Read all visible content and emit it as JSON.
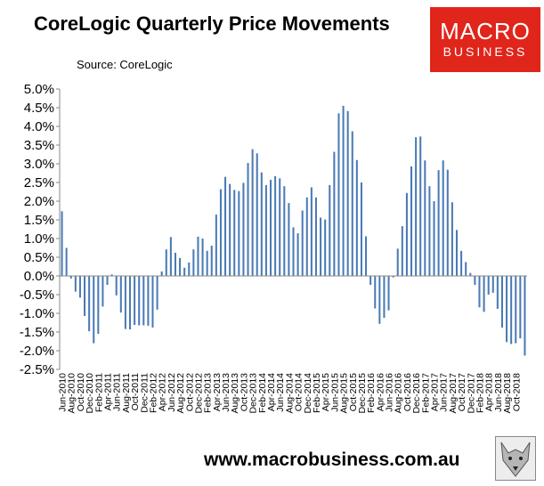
{
  "header": {
    "title": "CoreLogic Quarterly Price Movements",
    "source": "Source: CoreLogic"
  },
  "logo": {
    "line1": "MACRO",
    "line2": "BUSINESS",
    "color": "#e0251b"
  },
  "footer": {
    "url": "www.macrobusiness.com.au",
    "wolf_icon": "wolf-logo-icon"
  },
  "chart_data": {
    "type": "bar",
    "title": "CoreLogic Quarterly Price Movements",
    "bar_color": "#4a7ab5",
    "ylim": [
      -2.5,
      5.0
    ],
    "yticks": [
      "5.0%",
      "4.5%",
      "4.0%",
      "3.5%",
      "3.0%",
      "2.5%",
      "2.0%",
      "1.5%",
      "1.0%",
      "0.5%",
      "0.0%",
      "-0.5%",
      "-1.0%",
      "-1.5%",
      "-2.0%",
      "-2.5%"
    ],
    "ytick_values": [
      5.0,
      4.5,
      4.0,
      3.5,
      3.0,
      2.5,
      2.0,
      1.5,
      1.0,
      0.5,
      0.0,
      -0.5,
      -1.0,
      -1.5,
      -2.0,
      -2.5
    ],
    "xtick_labels": [
      "Jun-2010",
      "Aug-2010",
      "Oct-2010",
      "Dec-2010",
      "Feb-2011",
      "Apr-2011",
      "Jun-2011",
      "Aug-2011",
      "Oct-2011",
      "Dec-2011",
      "Feb-2012",
      "Apr-2012",
      "Jun-2012",
      "Aug-2012",
      "Oct-2012",
      "Dec-2012",
      "Feb-2013",
      "Apr-2013",
      "Jun-2013",
      "Aug-2013",
      "Oct-2013",
      "Dec-2013",
      "Feb-2014",
      "Apr-2014",
      "Jun-2014",
      "Aug-2014",
      "Oct-2014",
      "Dec-2014",
      "Feb-2015",
      "Apr-2015",
      "Jun-2015",
      "Aug-2015",
      "Oct-2015",
      "Dec-2015",
      "Feb-2016",
      "Apr-2016",
      "Jun-2016",
      "Aug-2016",
      "Oct-2016",
      "Dec-2016",
      "Feb-2017",
      "Apr-2017",
      "Jun-2017",
      "Aug-2017",
      "Oct-2017",
      "Dec-2017",
      "Feb-2018",
      "Apr-2018",
      "Jun-2018",
      "Aug-2018",
      "Oct-2018"
    ],
    "values": [
      1.73,
      0.75,
      -0.07,
      -0.42,
      -0.58,
      -1.07,
      -1.48,
      -1.8,
      -1.55,
      -0.82,
      -0.24,
      0.04,
      -0.52,
      -0.98,
      -1.42,
      -1.43,
      -1.31,
      -1.32,
      -1.32,
      -1.33,
      -1.38,
      -0.9,
      0.12,
      0.71,
      1.04,
      0.62,
      0.48,
      0.22,
      0.36,
      0.71,
      1.05,
      1.0,
      0.67,
      0.81,
      1.64,
      2.32,
      2.65,
      2.46,
      2.3,
      2.27,
      2.49,
      3.02,
      3.39,
      3.28,
      2.77,
      2.43,
      2.57,
      2.67,
      2.61,
      2.4,
      1.95,
      1.3,
      1.14,
      1.75,
      2.1,
      2.37,
      2.1,
      1.56,
      1.51,
      2.43,
      3.32,
      4.35,
      4.55,
      4.41,
      3.87,
      3.1,
      2.5,
      1.06,
      -0.24,
      -0.87,
      -1.28,
      -1.12,
      -0.92,
      -0.04,
      0.73,
      1.33,
      2.22,
      2.93,
      3.71,
      3.73,
      3.09,
      2.4,
      2.0,
      2.83,
      3.09,
      2.84,
      1.97,
      1.23,
      0.67,
      0.37,
      0.08,
      -0.24,
      -0.84,
      -0.96,
      -0.5,
      -0.45,
      -0.88,
      -1.38,
      -1.77,
      -1.82,
      -1.8,
      -1.67,
      -2.13
    ]
  }
}
